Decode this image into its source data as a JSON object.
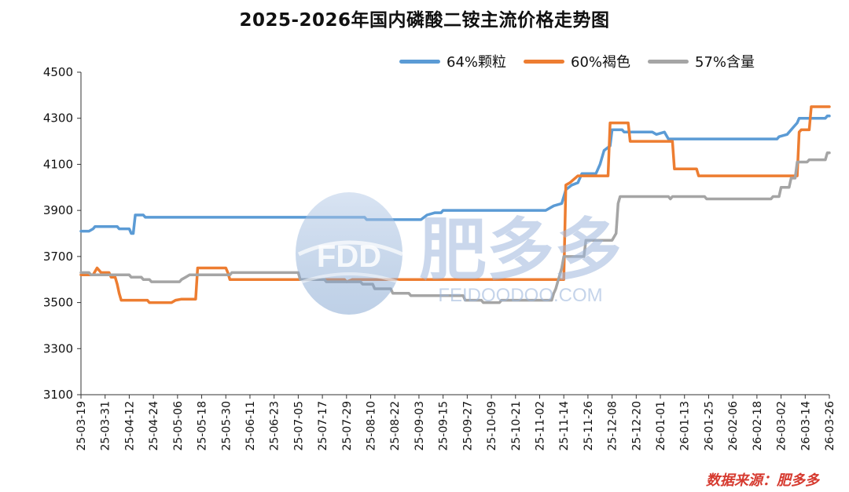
{
  "title": "2025-2026年国内磷酸二铵主流价格走势图",
  "source": "数据来源：肥多多",
  "watermark": {
    "logo_text": "FDD",
    "brand_text": "肥多多",
    "url_text": "FEIDOODOO.COM"
  },
  "colors": {
    "s64": "#5b9bd5",
    "s60": "#ed7d31",
    "s57": "#a5a5a5",
    "watermark": "#9fb8dd",
    "source": "#d63a2f"
  },
  "chart_data": {
    "type": "line",
    "title": "2025-2026年国内磷酸二铵主流价格走势图",
    "ylim": [
      3100,
      4500
    ],
    "yticks": [
      3100,
      3300,
      3500,
      3700,
      3900,
      4100,
      4300,
      4500
    ],
    "x_range": [
      "25-03-19",
      "26-03-26"
    ],
    "xtick_labels": [
      "25-03-19",
      "25-03-31",
      "25-04-12",
      "25-04-24",
      "25-05-06",
      "25-05-18",
      "25-05-30",
      "25-06-11",
      "25-06-23",
      "25-07-05",
      "25-07-17",
      "25-07-29",
      "25-08-10",
      "25-08-22",
      "25-09-03",
      "25-09-15",
      "25-09-27",
      "25-10-09",
      "25-10-21",
      "25-11-02",
      "25-11-14",
      "25-11-26",
      "25-12-08",
      "25-12-20",
      "26-01-01",
      "26-01-13",
      "26-01-25",
      "26-02-06",
      "26-02-18",
      "26-03-02",
      "26-03-14",
      "26-03-26"
    ],
    "legend_position": "top-right",
    "grid": false,
    "series": [
      {
        "name": "64%颗粒",
        "color": "#5b9bd5",
        "points": [
          [
            "25-03-19",
            3810
          ],
          [
            "25-03-23",
            3810
          ],
          [
            "25-03-25",
            3820
          ],
          [
            "25-03-26",
            3830
          ],
          [
            "25-04-06",
            3830
          ],
          [
            "25-04-07",
            3820
          ],
          [
            "25-04-12",
            3820
          ],
          [
            "25-04-13",
            3800
          ],
          [
            "25-04-14",
            3800
          ],
          [
            "25-04-15",
            3880
          ],
          [
            "25-04-19",
            3880
          ],
          [
            "25-04-20",
            3870
          ],
          [
            "25-08-07",
            3870
          ],
          [
            "25-08-08",
            3860
          ],
          [
            "25-09-04",
            3860
          ],
          [
            "25-09-07",
            3880
          ],
          [
            "25-09-11",
            3890
          ],
          [
            "25-09-14",
            3890
          ],
          [
            "25-09-15",
            3900
          ],
          [
            "25-11-05",
            3900
          ],
          [
            "25-11-09",
            3920
          ],
          [
            "25-11-13",
            3930
          ],
          [
            "25-11-15",
            3990
          ],
          [
            "25-11-18",
            4010
          ],
          [
            "25-11-21",
            4020
          ],
          [
            "25-11-23",
            4060
          ],
          [
            "25-11-30",
            4060
          ],
          [
            "25-12-01",
            4080
          ],
          [
            "25-12-02",
            4100
          ],
          [
            "25-12-04",
            4160
          ],
          [
            "25-12-07",
            4180
          ],
          [
            "25-12-08",
            4250
          ],
          [
            "25-12-13",
            4250
          ],
          [
            "25-12-14",
            4240
          ],
          [
            "25-12-28",
            4240
          ],
          [
            "25-12-30",
            4230
          ],
          [
            "26-01-03",
            4240
          ],
          [
            "26-01-05",
            4210
          ],
          [
            "26-02-28",
            4210
          ],
          [
            "26-02-29",
            4220
          ],
          [
            "26-03-05",
            4230
          ],
          [
            "26-03-08",
            4260
          ],
          [
            "26-03-10",
            4280
          ],
          [
            "26-03-11",
            4300
          ],
          [
            "26-03-24",
            4300
          ],
          [
            "26-03-25",
            4310
          ],
          [
            "26-03-26",
            4310
          ]
        ]
      },
      {
        "name": "60%褐色",
        "color": "#ed7d31",
        "points": [
          [
            "25-03-19",
            3620
          ],
          [
            "25-03-25",
            3620
          ],
          [
            "25-03-27",
            3650
          ],
          [
            "25-03-29",
            3630
          ],
          [
            "25-04-02",
            3630
          ],
          [
            "25-04-03",
            3610
          ],
          [
            "25-04-05",
            3610
          ],
          [
            "25-04-06",
            3580
          ],
          [
            "25-04-07",
            3540
          ],
          [
            "25-04-08",
            3510
          ],
          [
            "25-04-21",
            3510
          ],
          [
            "25-04-22",
            3500
          ],
          [
            "25-05-03",
            3500
          ],
          [
            "25-05-05",
            3510
          ],
          [
            "25-05-08",
            3515
          ],
          [
            "25-05-15",
            3515
          ],
          [
            "25-05-16",
            3650
          ],
          [
            "25-05-30",
            3650
          ],
          [
            "25-05-31",
            3630
          ],
          [
            "25-06-01",
            3600
          ],
          [
            "25-07-28",
            3600
          ],
          [
            "25-07-29",
            3590
          ],
          [
            "25-08-01",
            3600
          ],
          [
            "25-11-14",
            3600
          ],
          [
            "25-11-15",
            4010
          ],
          [
            "25-11-17",
            4020
          ],
          [
            "25-11-21",
            4050
          ],
          [
            "25-12-06",
            4050
          ],
          [
            "25-12-07",
            4280
          ],
          [
            "25-12-16",
            4280
          ],
          [
            "25-12-17",
            4200
          ],
          [
            "26-01-07",
            4200
          ],
          [
            "26-01-08",
            4080
          ],
          [
            "26-01-19",
            4080
          ],
          [
            "26-01-20",
            4050
          ],
          [
            "26-03-10",
            4050
          ],
          [
            "26-03-11",
            4240
          ],
          [
            "26-03-12",
            4250
          ],
          [
            "26-03-16",
            4250
          ],
          [
            "26-03-17",
            4350
          ],
          [
            "26-03-26",
            4350
          ]
        ]
      },
      {
        "name": "57%含量",
        "color": "#a5a5a5",
        "points": [
          [
            "25-03-19",
            3630
          ],
          [
            "25-03-23",
            3630
          ],
          [
            "25-03-24",
            3620
          ],
          [
            "25-04-12",
            3620
          ],
          [
            "25-04-13",
            3610
          ],
          [
            "25-04-18",
            3610
          ],
          [
            "25-04-19",
            3600
          ],
          [
            "25-04-22",
            3600
          ],
          [
            "25-04-23",
            3590
          ],
          [
            "25-05-07",
            3590
          ],
          [
            "25-05-08",
            3600
          ],
          [
            "25-05-10",
            3610
          ],
          [
            "25-05-12",
            3620
          ],
          [
            "25-06-01",
            3620
          ],
          [
            "25-06-02",
            3630
          ],
          [
            "25-07-05",
            3630
          ],
          [
            "25-07-06",
            3600
          ],
          [
            "25-07-18",
            3600
          ],
          [
            "25-07-19",
            3590
          ],
          [
            "25-08-05",
            3590
          ],
          [
            "25-08-06",
            3580
          ],
          [
            "25-08-11",
            3580
          ],
          [
            "25-08-12",
            3560
          ],
          [
            "25-08-20",
            3560
          ],
          [
            "25-08-21",
            3540
          ],
          [
            "25-08-29",
            3540
          ],
          [
            "25-08-30",
            3530
          ],
          [
            "25-09-25",
            3530
          ],
          [
            "25-09-26",
            3510
          ],
          [
            "25-10-04",
            3510
          ],
          [
            "25-10-05",
            3500
          ],
          [
            "25-10-13",
            3500
          ],
          [
            "25-10-14",
            3510
          ],
          [
            "25-11-08",
            3510
          ],
          [
            "25-11-09",
            3540
          ],
          [
            "25-11-10",
            3560
          ],
          [
            "25-11-11",
            3590
          ],
          [
            "25-11-12",
            3620
          ],
          [
            "25-11-13",
            3650
          ],
          [
            "25-11-14",
            3700
          ],
          [
            "25-11-24",
            3700
          ],
          [
            "25-11-25",
            3770
          ],
          [
            "25-12-08",
            3770
          ],
          [
            "25-12-10",
            3800
          ],
          [
            "25-12-11",
            3930
          ],
          [
            "25-12-12",
            3960
          ],
          [
            "26-01-05",
            3960
          ],
          [
            "26-01-06",
            3950
          ],
          [
            "26-01-07",
            3960
          ],
          [
            "26-01-23",
            3960
          ],
          [
            "26-01-24",
            3950
          ],
          [
            "26-02-25",
            3950
          ],
          [
            "26-02-26",
            3960
          ],
          [
            "26-03-01",
            3960
          ],
          [
            "26-03-02",
            4000
          ],
          [
            "26-03-06",
            4000
          ],
          [
            "26-03-07",
            4040
          ],
          [
            "26-03-09",
            4040
          ],
          [
            "26-03-10",
            4110
          ],
          [
            "26-03-15",
            4110
          ],
          [
            "26-03-16",
            4120
          ],
          [
            "26-03-24",
            4120
          ],
          [
            "26-03-25",
            4150
          ],
          [
            "26-03-26",
            4150
          ]
        ]
      }
    ]
  }
}
